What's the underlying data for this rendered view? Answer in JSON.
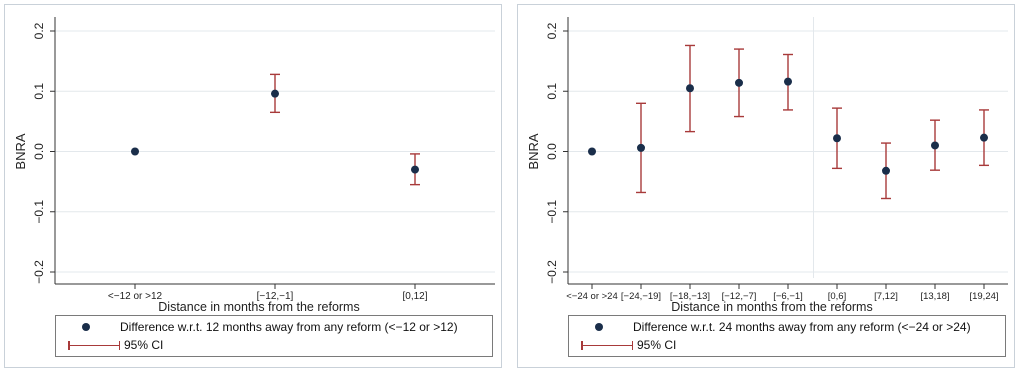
{
  "chart_data": [
    {
      "type": "scatter",
      "categories": [
        "<−12 or >12",
        "[−12,−1]",
        "[0,12]"
      ],
      "series": [
        {
          "name": "Difference w.r.t. 12 months away from any reform (<−12 or >12)",
          "values": [
            0.0,
            0.096,
            -0.03
          ]
        },
        {
          "name": "95% CI",
          "lower": [
            null,
            0.065,
            -0.055
          ],
          "upper": [
            null,
            0.128,
            -0.004
          ]
        }
      ],
      "xlabel": "Distance in months from the reforms",
      "ylabel": "BNRA",
      "ylim": [
        -0.2,
        0.2
      ],
      "yticks": [
        "−0.2",
        "−0.1",
        "0.0",
        "0.1",
        "0.2"
      ],
      "grid": true,
      "legend_position": "bottom"
    },
    {
      "type": "scatter",
      "categories": [
        "<−24 or >24",
        "[−24,−19]",
        "[−18,−13]",
        "[−12,−7]",
        "[−6,−1]",
        "[0,6]",
        "[7,12]",
        "[13,18]",
        "[19,24]"
      ],
      "series": [
        {
          "name": "Difference w.r.t. 24 months away from any reform (<−24 or >24)",
          "values": [
            0.0,
            0.006,
            0.105,
            0.114,
            0.116,
            0.022,
            -0.032,
            0.01,
            0.023
          ]
        },
        {
          "name": "95% CI",
          "lower": [
            null,
            -0.068,
            0.033,
            0.058,
            0.069,
            -0.028,
            -0.078,
            -0.031,
            -0.023
          ],
          "upper": [
            null,
            0.08,
            0.176,
            0.17,
            0.161,
            0.072,
            0.014,
            0.052,
            0.069
          ]
        }
      ],
      "xlabel": "Distance in months from the reforms",
      "ylabel": "BNRA",
      "ylim": [
        -0.2,
        0.2
      ],
      "yticks": [
        "−0.2",
        "−0.1",
        "0.0",
        "0.1",
        "0.2"
      ],
      "grid": true,
      "legend_position": "bottom"
    }
  ],
  "legend": [
    {
      "point_label": "Difference w.r.t. 12 months away from any reform (<−12 or >12)",
      "ci_label": "95% CI"
    },
    {
      "point_label": "Difference w.r.t. 24 months away from any reform (<−24 or >24)",
      "ci_label": "95% CI"
    }
  ],
  "colors": {
    "point": "#1a2e4a",
    "ci": "#a83a3a",
    "grid": "#e3e8ec",
    "axis": "#333333"
  }
}
